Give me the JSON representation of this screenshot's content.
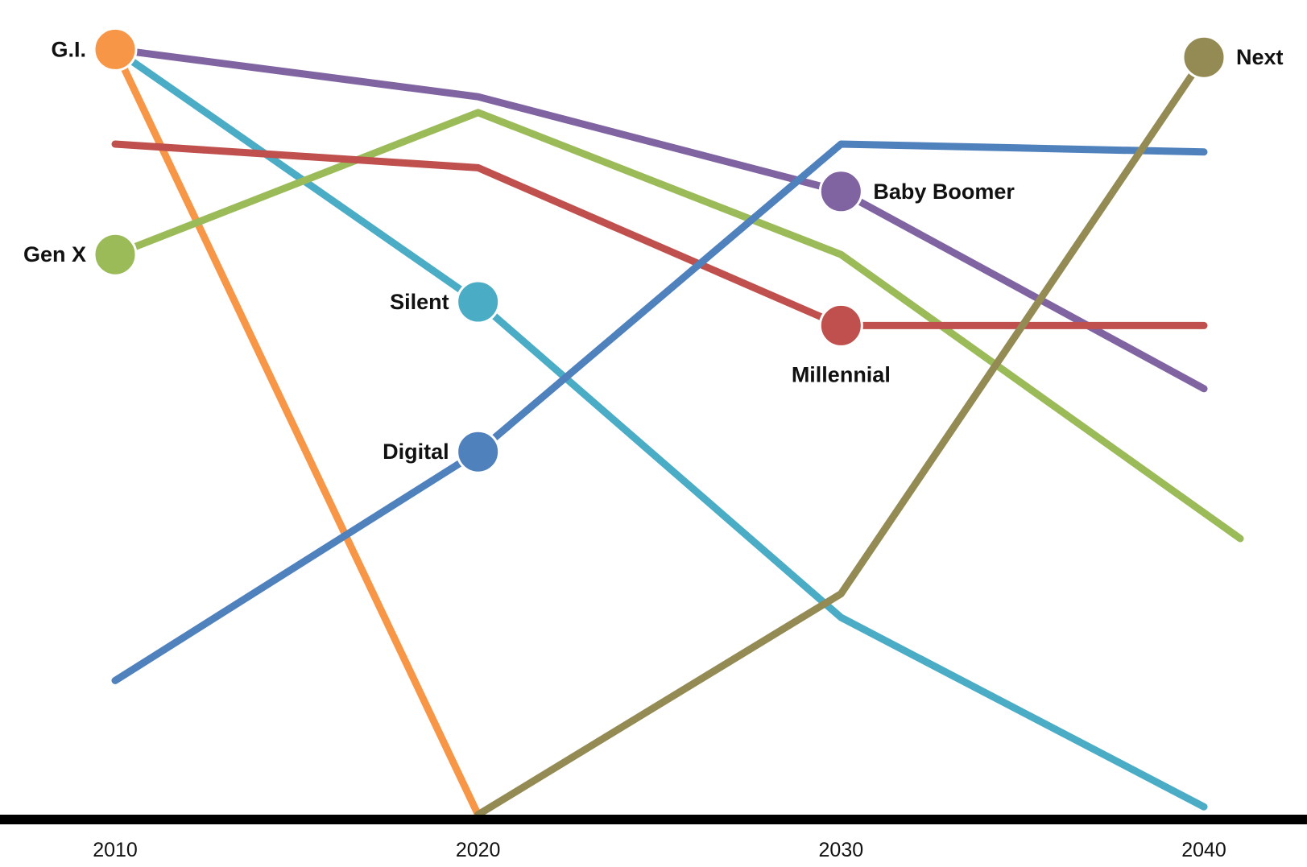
{
  "chart_data": {
    "type": "line",
    "title": "",
    "xlabel": "",
    "ylabel": "",
    "x": [
      2010,
      2020,
      2030,
      2040
    ],
    "x_tick_labels": [
      "2010",
      "2020",
      "2030",
      "2040"
    ],
    "xlim": [
      2010,
      2040
    ],
    "ylim": [
      0,
      100
    ],
    "grid": false,
    "legend": "none",
    "series": [
      {
        "name": "G.I.",
        "color": "#F79646",
        "points": [
          [
            2010,
            97
          ],
          [
            2020,
            0
          ]
        ],
        "marker_index": 0,
        "label_side": "left"
      },
      {
        "name": "Silent",
        "color": "#4BACC6",
        "points": [
          [
            2010,
            97
          ],
          [
            2020,
            65
          ],
          [
            2030,
            25
          ],
          [
            2040,
            1
          ]
        ],
        "marker_index": 1,
        "label_side": "left"
      },
      {
        "name": "Baby Boomer",
        "color": "#8064A2",
        "points": [
          [
            2010,
            97
          ],
          [
            2020,
            91
          ],
          [
            2030,
            79
          ],
          [
            2040,
            54
          ]
        ],
        "marker_index": 2,
        "label_side": "right"
      },
      {
        "name": "Gen X",
        "color": "#9BBB59",
        "points": [
          [
            2010,
            71
          ],
          [
            2020,
            89
          ],
          [
            2030,
            71
          ],
          [
            2041,
            35
          ]
        ],
        "marker_index": 0,
        "label_side": "left"
      },
      {
        "name": "Millennial",
        "color": "#C0504D",
        "points": [
          [
            2010,
            85
          ],
          [
            2020,
            82
          ],
          [
            2030,
            62
          ],
          [
            2040,
            62
          ]
        ],
        "marker_index": 2,
        "label_side": "below"
      },
      {
        "name": "Digital",
        "color": "#4F81BD",
        "points": [
          [
            2010,
            17
          ],
          [
            2020,
            46
          ],
          [
            2030,
            85
          ],
          [
            2040,
            84
          ]
        ],
        "marker_index": 1,
        "label_side": "left"
      },
      {
        "name": "Next",
        "color": "#948A54",
        "points": [
          [
            2020,
            0
          ],
          [
            2030,
            28
          ],
          [
            2040,
            96
          ]
        ],
        "marker_index": 2,
        "label_side": "right"
      }
    ]
  }
}
